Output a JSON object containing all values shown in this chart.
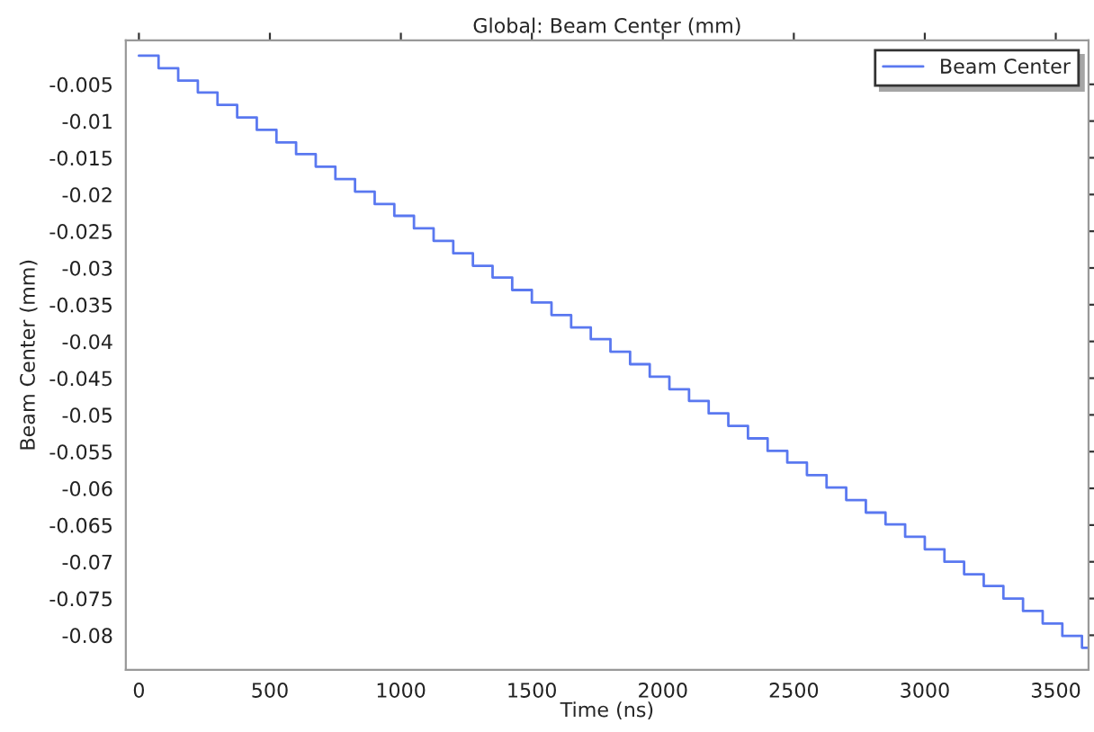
{
  "chart_data": {
    "type": "step",
    "title": "Global: Beam Center (mm)",
    "xlabel": "Time (ns)",
    "ylabel": "Beam Center (mm)",
    "x": [
      0,
      75,
      150,
      225,
      300,
      375,
      450,
      525,
      600,
      675,
      750,
      825,
      900,
      975,
      1050,
      1125,
      1200,
      1275,
      1350,
      1425,
      1500,
      1575,
      1650,
      1725,
      1800,
      1875,
      1950,
      2025,
      2100,
      2175,
      2250,
      2325,
      2400,
      2475,
      2550,
      2625,
      2700,
      2775,
      2850,
      2925,
      3000,
      3075,
      3150,
      3225,
      3300,
      3375,
      3450,
      3525,
      3600,
      3625
    ],
    "series": [
      {
        "name": "Beam Center",
        "color": "#5a78f0",
        "values": [
          -0.0011,
          -0.0028,
          -0.0045,
          -0.0061,
          -0.0078,
          -0.0095,
          -0.0112,
          -0.0129,
          -0.0145,
          -0.0162,
          -0.0179,
          -0.0196,
          -0.0213,
          -0.0229,
          -0.0246,
          -0.0263,
          -0.028,
          -0.0297,
          -0.0313,
          -0.033,
          -0.0347,
          -0.0364,
          -0.0381,
          -0.0397,
          -0.0414,
          -0.0431,
          -0.0448,
          -0.0465,
          -0.0481,
          -0.0498,
          -0.0515,
          -0.0532,
          -0.0549,
          -0.0565,
          -0.0582,
          -0.0599,
          -0.0616,
          -0.0633,
          -0.0649,
          -0.0666,
          -0.0683,
          -0.07,
          -0.0717,
          -0.0733,
          -0.075,
          -0.0767,
          -0.0784,
          -0.0801,
          -0.0817,
          -0.0817
        ]
      }
    ],
    "xlim": [
      -50,
      3625
    ],
    "xticks": [
      0,
      500,
      1000,
      1500,
      2000,
      2500,
      3000,
      3500
    ],
    "ylim": [
      -0.0847,
      0.001
    ],
    "yticks": [
      -0.005,
      -0.01,
      -0.015,
      -0.02,
      -0.025,
      -0.03,
      -0.035,
      -0.04,
      -0.045,
      -0.05,
      -0.055,
      -0.06,
      -0.065,
      -0.07,
      -0.075,
      -0.08
    ],
    "grid": false,
    "legend": "top right",
    "line_style": "solid",
    "marker": "none"
  }
}
